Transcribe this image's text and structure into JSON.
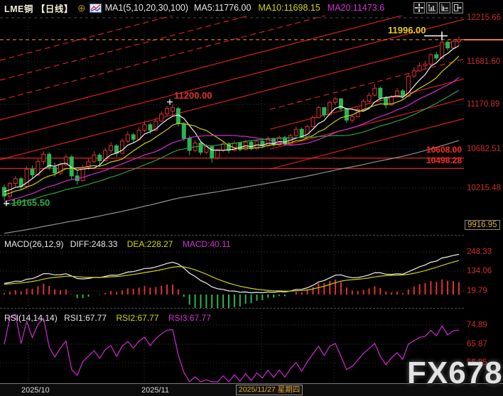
{
  "header": {
    "symbol_period": "LME铜 【日线】",
    "ma_settings": "MA1(5,10,20,30,100)",
    "ma5": "MA5:11776.00",
    "ma10": "MA10:11698.15",
    "ma20": "MA20:11473.6"
  },
  "toolbar": {
    "icons": [
      "crosshair-icon",
      "axis-scale-icon",
      "axis-shift-icon",
      "exit-icon"
    ]
  },
  "axis": {
    "main": [
      "12215.66",
      "11681.60",
      "11170.89",
      "10682.51",
      "10215.48"
    ],
    "main_badge": "9916.95",
    "macd": [
      "248.33",
      "134.06",
      "19.79"
    ],
    "rsi": [
      "74.89",
      "65.87",
      "56.85"
    ]
  },
  "markers_ui": {
    "high": "11996.00",
    "swing": "11200.00",
    "low": "10165.50",
    "s1": "10608.00",
    "s2": "10498.28"
  },
  "macd_header": {
    "title": "MACD(26,12,9)",
    "diff": "DIFF:248.33",
    "dea": "DEA:228.27",
    "macd": "MACD:40.11"
  },
  "rsi_header": {
    "title": "RSI(14,14,14)",
    "rsi1": "RSI1:67.77",
    "rsi2": "RSI2:67.77",
    "rsi3": "RSI3:67.77"
  },
  "time_axis": {
    "m1": "2025/10",
    "m2": "2025/11",
    "current": "2025/11/27 星期四"
  },
  "watermark": "FX678",
  "colors": {
    "up": "#e03232",
    "down": "#2cb450",
    "support": "#ff2424",
    "channel": "#d42020",
    "last_price_line": "#cf7a1e",
    "axis_text": "#cd2a2a",
    "high_label": "#e8cf1a",
    "low_label": "#2fae46",
    "ma5": "#f0f0f0",
    "ma10": "#cfcf10",
    "ma20": "#cc2fcc",
    "ma30": "#2f9e44",
    "ma100": "#909090",
    "diff_line": "#f0f0f0",
    "dea_line": "#cfcf10",
    "rsi_line": "#d428d4",
    "current_date_text": "#e8a033"
  },
  "chart_data": {
    "type": "candlestick",
    "symbol": "LME铜",
    "period": "日线",
    "ma_periods": [
      5,
      10,
      20,
      30,
      100
    ],
    "y_axis_values": [
      12215.66,
      11681.6,
      11170.89,
      10682.51,
      10215.48,
      9916.95
    ],
    "x_axis": {
      "month_labels": [
        "2025/10",
        "2025/11"
      ],
      "current_date": "2025/11/27 星期四"
    },
    "markers": {
      "period_high": 11996.0,
      "swing_high": 11200.0,
      "period_low": 10165.5
    },
    "support_lines": [
      10608.0,
      10498.28
    ],
    "last_price": 11950,
    "indicators": {
      "ma5": 11776.0,
      "ma10": 11698.15,
      "ma20": 11473.6,
      "macd": {
        "diff": 248.33,
        "dea": 228.27,
        "macd": 40.11,
        "axis": [
          248.33,
          134.06,
          19.79
        ]
      },
      "rsi": {
        "rsi1": 67.77,
        "rsi2": 67.77,
        "rsi3": 67.77,
        "axis": [
          74.89,
          65.87,
          56.85
        ]
      }
    },
    "ohlc": [
      [
        10300,
        10330,
        10165.5,
        10210
      ],
      [
        10210,
        10360,
        10180,
        10340
      ],
      [
        10340,
        10420,
        10300,
        10390
      ],
      [
        10390,
        10410,
        10280,
        10310
      ],
      [
        10310,
        10520,
        10290,
        10490
      ],
      [
        10490,
        10530,
        10400,
        10430
      ],
      [
        10430,
        10600,
        10420,
        10570
      ],
      [
        10570,
        10680,
        10540,
        10650
      ],
      [
        10650,
        10670,
        10480,
        10510
      ],
      [
        10510,
        10560,
        10410,
        10450
      ],
      [
        10450,
        10570,
        10430,
        10540
      ],
      [
        10540,
        10650,
        10520,
        10620
      ],
      [
        10620,
        10640,
        10380,
        10420
      ],
      [
        10420,
        10480,
        10330,
        10370
      ],
      [
        10370,
        10540,
        10360,
        10510
      ],
      [
        10510,
        10610,
        10480,
        10570
      ],
      [
        10570,
        10680,
        10550,
        10640
      ],
      [
        10640,
        10660,
        10540,
        10580
      ],
      [
        10580,
        10720,
        10570,
        10690
      ],
      [
        10690,
        10780,
        10660,
        10740
      ],
      [
        10740,
        10760,
        10620,
        10660
      ],
      [
        10660,
        10820,
        10650,
        10790
      ],
      [
        10790,
        10900,
        10770,
        10860
      ],
      [
        10860,
        10880,
        10780,
        10810
      ],
      [
        10810,
        10950,
        10800,
        10910
      ],
      [
        10910,
        11010,
        10890,
        10970
      ],
      [
        10970,
        10990,
        10870,
        10910
      ],
      [
        10910,
        11050,
        10900,
        11010
      ],
      [
        11010,
        11120,
        11000,
        11090
      ],
      [
        11090,
        11180,
        11060,
        11150
      ],
      [
        11120,
        11200,
        11060,
        11160
      ],
      [
        11150,
        11170,
        10950,
        10980
      ],
      [
        10980,
        11000,
        10790,
        10820
      ],
      [
        10820,
        10850,
        10640,
        10690
      ],
      [
        10690,
        10800,
        10670,
        10770
      ],
      [
        10770,
        10790,
        10640,
        10670
      ],
      [
        10670,
        10760,
        10650,
        10730
      ],
      [
        10730,
        10740,
        10560,
        10610
      ],
      [
        10610,
        10710,
        10590,
        10690
      ],
      [
        10690,
        10790,
        10670,
        10760
      ],
      [
        10760,
        10780,
        10660,
        10690
      ],
      [
        10690,
        10790,
        10680,
        10770
      ],
      [
        10770,
        10780,
        10680,
        10700
      ],
      [
        10700,
        10800,
        10690,
        10780
      ],
      [
        10780,
        10800,
        10690,
        10710
      ],
      [
        10710,
        10810,
        10700,
        10790
      ],
      [
        10790,
        10800,
        10720,
        10740
      ],
      [
        10740,
        10840,
        10730,
        10820
      ],
      [
        10820,
        10830,
        10730,
        10750
      ],
      [
        10750,
        10850,
        10740,
        10830
      ],
      [
        10830,
        10850,
        10740,
        10760
      ],
      [
        10760,
        10870,
        10750,
        10850
      ],
      [
        10850,
        10950,
        10840,
        10920
      ],
      [
        10920,
        10940,
        10820,
        10840
      ],
      [
        10840,
        10970,
        10830,
        10950
      ],
      [
        10950,
        11070,
        10940,
        11050
      ],
      [
        11050,
        11180,
        11040,
        11160
      ],
      [
        11160,
        11170,
        11050,
        11080
      ],
      [
        11080,
        11240,
        11070,
        11220
      ],
      [
        11220,
        11280,
        11190,
        11260
      ],
      [
        11260,
        11270,
        11120,
        11150
      ],
      [
        11150,
        11160,
        10990,
        11020
      ],
      [
        11020,
        11080,
        10990,
        11060
      ],
      [
        11060,
        11160,
        11050,
        11140
      ],
      [
        11140,
        11260,
        11130,
        11230
      ],
      [
        11230,
        11330,
        11220,
        11300
      ],
      [
        11300,
        11430,
        11290,
        11380
      ],
      [
        11380,
        11400,
        11240,
        11270
      ],
      [
        11270,
        11290,
        11150,
        11190
      ],
      [
        11190,
        11300,
        11180,
        11280
      ],
      [
        11280,
        11380,
        11270,
        11350
      ],
      [
        11350,
        11370,
        11260,
        11290
      ],
      [
        11290,
        11550,
        11280,
        11520
      ],
      [
        11520,
        11620,
        11500,
        11580
      ],
      [
        11580,
        11680,
        11570,
        11640
      ],
      [
        11640,
        11700,
        11600,
        11660
      ],
      [
        11660,
        11790,
        11640,
        11770
      ],
      [
        11770,
        11800,
        11700,
        11730
      ],
      [
        11730,
        11996,
        11720,
        11920
      ],
      [
        11920,
        11940,
        11820,
        11850
      ],
      [
        11850,
        11960,
        11840,
        11930
      ],
      [
        11930,
        11990,
        11880,
        11950
      ]
    ]
  }
}
